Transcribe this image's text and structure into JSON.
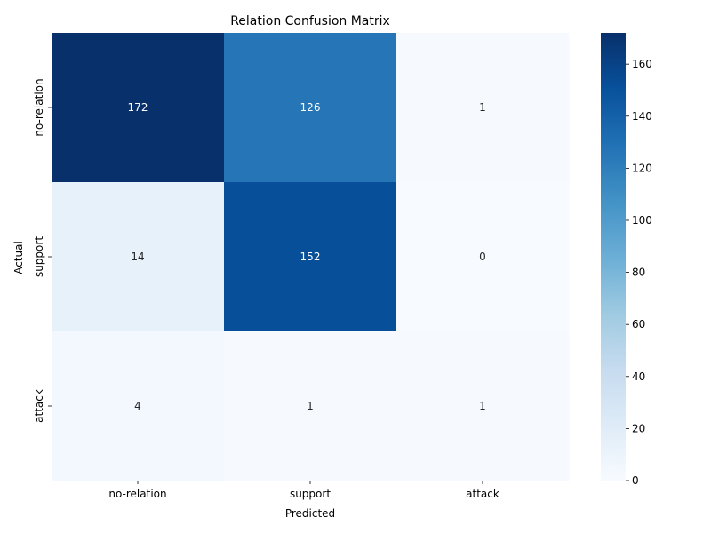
{
  "chart_data": {
    "type": "heatmap",
    "title": "Relation Confusion Matrix",
    "xlabel": "Predicted",
    "ylabel": "Actual",
    "x_categories": [
      "no-relation",
      "support",
      "attack"
    ],
    "y_categories": [
      "no-relation",
      "support",
      "attack"
    ],
    "values": [
      [
        172,
        126,
        1
      ],
      [
        14,
        152,
        0
      ],
      [
        4,
        1,
        1
      ]
    ],
    "colormap": "Blues",
    "color_range": [
      0,
      172
    ],
    "colorbar_ticks": [
      "0",
      "20",
      "40",
      "60",
      "80",
      "100",
      "120",
      "140",
      "160"
    ],
    "grid": false,
    "legend": "colorbar-right"
  }
}
